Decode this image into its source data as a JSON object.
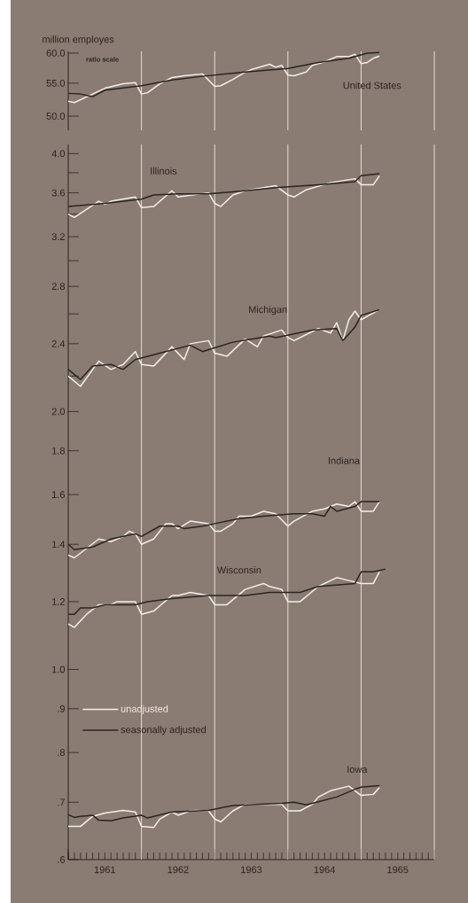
{
  "chart_data": [
    {
      "type": "line",
      "ylabel": "million employes",
      "log": true,
      "tick_labels": "y",
      "annotations": [
        "ratio scale",
        "United States"
      ],
      "xlim": [
        "1961-01",
        "1966-01"
      ],
      "ylim": [
        48,
        60.3
      ],
      "yticks": [
        {
          "value": 50,
          "label": "50.0"
        },
        {
          "value": 55,
          "label": "55.0"
        },
        {
          "value": 60,
          "label": "60.0"
        }
      ],
      "ref_lines": [
        {
          "axis": "x",
          "value": "1962-01",
          "color": "#efe9e0"
        },
        {
          "axis": "x",
          "value": "1963-01",
          "color": "#efe9e0"
        },
        {
          "axis": "x",
          "value": "1964-01",
          "color": "#efe9e0"
        },
        {
          "axis": "x",
          "value": "1965-01",
          "color": "#efe9e0"
        }
      ],
      "series": [
        {
          "color": "#f3eee6",
          "x": [
            "1961-01",
            "1961-02",
            "1961-05",
            "1961-07",
            "1961-10",
            "1961-12",
            "1962-01",
            "1962-02",
            "1962-04",
            "1962-06",
            "1962-08",
            "1962-11",
            "1963-01",
            "1963-02",
            "1963-04",
            "1963-06",
            "1963-07",
            "1963-10",
            "1963-11",
            "1963-12",
            "1964-01",
            "1964-02",
            "1964-04",
            "1964-05",
            "1964-07",
            "1964-09",
            "1964-11",
            "1964-12",
            "1965-01",
            "1965-02",
            "1965-03",
            "1965-04"
          ],
          "values": [
            52.2,
            52.0,
            53.3,
            54.2,
            54.9,
            55.1,
            53.3,
            53.5,
            54.9,
            55.9,
            56.2,
            56.5,
            54.5,
            54.6,
            55.6,
            56.8,
            57.2,
            58.1,
            57.6,
            57.9,
            56.3,
            56.2,
            56.8,
            57.9,
            58.5,
            59.4,
            59.4,
            59.8,
            58.2,
            58.4,
            59.1,
            59.5
          ]
        },
        {
          "color": "#2a2522",
          "x": [
            "1961-01",
            "1961-03",
            "1961-05",
            "1961-07",
            "1962-01",
            "1962-06",
            "1962-11",
            "1963-06",
            "1964-01",
            "1964-06",
            "1964-11",
            "1965-02",
            "1965-04"
          ],
          "values": [
            53.4,
            53.3,
            52.9,
            53.9,
            54.6,
            55.5,
            56.1,
            56.8,
            57.4,
            58.4,
            59.1,
            60.0,
            60.1
          ]
        }
      ]
    },
    {
      "type": "line",
      "log": true,
      "legend": "bottom left",
      "annotations": [
        "Illinois",
        "Michigan",
        "Indiana",
        "Wisconsin",
        "Iowa"
      ],
      "xlim": [
        "1961-01",
        "1966-01"
      ],
      "ylim": [
        0.6,
        4.1
      ],
      "xticks": [
        {
          "value": "1961-01",
          "label": null
        },
        {
          "value": "1962-01",
          "label": null
        },
        {
          "value": "1963-01",
          "label": null
        },
        {
          "value": "1964-01",
          "label": null
        },
        {
          "value": "1965-01",
          "label": null
        },
        {
          "value": "1966-01",
          "label": null
        },
        {
          "value": "1961-07",
          "label": "1961"
        },
        {
          "value": "1962-07",
          "label": "1962"
        },
        {
          "value": "1963-07",
          "label": "1963"
        },
        {
          "value": "1964-07",
          "label": "1964"
        },
        {
          "value": "1965-07",
          "label": "1965"
        }
      ],
      "yticks": [
        {
          "value": 4.0,
          "label": "4.0"
        },
        {
          "value": 3.8,
          "label": null
        },
        {
          "value": 3.6,
          "label": "3.6"
        },
        {
          "value": 3.4,
          "label": null
        },
        {
          "value": 3.2,
          "label": "3.2"
        },
        {
          "value": 3.0,
          "label": null
        },
        {
          "value": 2.8,
          "label": "2.8"
        },
        {
          "value": 2.6,
          "label": null
        },
        {
          "value": 2.4,
          "label": "2.4"
        },
        {
          "value": 2.2,
          "label": null
        },
        {
          "value": 2.0,
          "label": "2.0"
        },
        {
          "value": 1.8,
          "label": "1.8"
        },
        {
          "value": 1.6,
          "label": "1.6"
        },
        {
          "value": 1.4,
          "label": "1.4"
        },
        {
          "value": 1.2,
          "label": "1.2"
        },
        {
          "value": 1.0,
          "label": "1.0"
        },
        {
          "value": 0.9,
          "label": ".9"
        },
        {
          "value": 0.8,
          "label": ".8"
        },
        {
          "value": 0.7,
          "label": ".7"
        },
        {
          "value": 0.6,
          "label": ".6"
        }
      ],
      "ref_lines": [
        {
          "axis": "x",
          "value": "1962-01",
          "color": "#efe9e0"
        },
        {
          "axis": "x",
          "value": "1963-01",
          "color": "#efe9e0"
        },
        {
          "axis": "x",
          "value": "1964-01",
          "color": "#efe9e0"
        },
        {
          "axis": "x",
          "value": "1965-01",
          "color": "#efe9e0"
        }
      ],
      "series": [
        {
          "name": "unadjusted",
          "color": "#f3eee6",
          "x": [
            "1961-01",
            "1961-02",
            "1961-06",
            "1961-07",
            "1961-08",
            "1961-12",
            "1962-01",
            "1962-03",
            "1962-06",
            "1962-07",
            "1962-12",
            "1963-01",
            "1963-02",
            "1963-04",
            "1963-06",
            "1963-11",
            "1964-01",
            "1964-02",
            "1964-04",
            "1964-08",
            "1964-12",
            "1965-01",
            "1965-03",
            "1965-04"
          ],
          "values": [
            3.4,
            3.37,
            3.52,
            3.49,
            3.52,
            3.56,
            3.46,
            3.47,
            3.62,
            3.56,
            3.6,
            3.5,
            3.47,
            3.58,
            3.62,
            3.67,
            3.58,
            3.56,
            3.63,
            3.7,
            3.74,
            3.68,
            3.68,
            3.77
          ]
        },
        {
          "name": "seasonally adjusted",
          "color": "#2a2522",
          "x": [
            "1961-01",
            "1961-07",
            "1962-01",
            "1962-03",
            "1962-07",
            "1962-12",
            "1963-06",
            "1963-11",
            "1964-06",
            "1964-12",
            "1965-01",
            "1965-04"
          ],
          "values": [
            3.47,
            3.5,
            3.54,
            3.58,
            3.59,
            3.59,
            3.62,
            3.65,
            3.68,
            3.71,
            3.77,
            3.79
          ]
        },
        {
          "color": "#f3eee6",
          "x": [
            "1961-01",
            "1961-03",
            "1961-06",
            "1961-08",
            "1961-10",
            "1961-12",
            "1962-01",
            "1962-03",
            "1962-06",
            "1962-08",
            "1962-09",
            "1962-12",
            "1963-01",
            "1963-03",
            "1963-06",
            "1963-08",
            "1963-09",
            "1963-12",
            "1964-01",
            "1964-02",
            "1964-06",
            "1964-08",
            "1964-09",
            "1964-10",
            "1964-11",
            "1964-12",
            "1965-01",
            "1965-04"
          ],
          "values": [
            2.2,
            2.14,
            2.29,
            2.24,
            2.27,
            2.35,
            2.27,
            2.26,
            2.38,
            2.3,
            2.4,
            2.42,
            2.34,
            2.32,
            2.43,
            2.38,
            2.45,
            2.49,
            2.44,
            2.42,
            2.5,
            2.47,
            2.54,
            2.42,
            2.56,
            2.62,
            2.56,
            2.63
          ]
        },
        {
          "color": "#2a2522",
          "x": [
            "1961-01",
            "1961-03",
            "1961-05",
            "1961-08",
            "1961-10",
            "1961-12",
            "1962-04",
            "1962-09",
            "1962-11",
            "1963-04",
            "1963-07",
            "1963-10",
            "1963-11",
            "1964-05",
            "1964-09",
            "1964-10",
            "1964-12",
            "1965-01",
            "1965-04"
          ],
          "values": [
            2.24,
            2.18,
            2.26,
            2.27,
            2.24,
            2.3,
            2.34,
            2.39,
            2.35,
            2.41,
            2.43,
            2.45,
            2.44,
            2.49,
            2.5,
            2.42,
            2.51,
            2.59,
            2.63
          ]
        },
        {
          "color": "#f3eee6",
          "x": [
            "1961-01",
            "1961-02",
            "1961-06",
            "1961-08",
            "1961-10",
            "1961-11",
            "1961-12",
            "1962-01",
            "1962-03",
            "1962-05",
            "1962-06",
            "1962-07",
            "1962-09",
            "1962-12",
            "1963-01",
            "1963-02",
            "1963-04",
            "1963-05",
            "1963-07",
            "1963-09",
            "1963-11",
            "1964-01",
            "1964-02",
            "1964-05",
            "1964-07",
            "1964-09",
            "1964-11",
            "1964-12",
            "1965-01",
            "1965-03",
            "1965-04"
          ],
          "values": [
            1.36,
            1.35,
            1.42,
            1.41,
            1.43,
            1.45,
            1.44,
            1.4,
            1.42,
            1.48,
            1.48,
            1.46,
            1.49,
            1.48,
            1.45,
            1.45,
            1.48,
            1.51,
            1.51,
            1.53,
            1.52,
            1.47,
            1.49,
            1.53,
            1.54,
            1.56,
            1.55,
            1.57,
            1.53,
            1.53,
            1.57
          ]
        },
        {
          "color": "#2a2522",
          "x": [
            "1961-01",
            "1961-02",
            "1961-05",
            "1961-08",
            "1961-10",
            "1961-12",
            "1962-01",
            "1962-04",
            "1962-07",
            "1962-08",
            "1962-11",
            "1963-01",
            "1963-05",
            "1963-09",
            "1964-02",
            "1964-05",
            "1964-07",
            "1964-08",
            "1964-09",
            "1964-12",
            "1965-01",
            "1965-04"
          ],
          "values": [
            1.4,
            1.38,
            1.39,
            1.42,
            1.43,
            1.44,
            1.43,
            1.47,
            1.47,
            1.46,
            1.47,
            1.48,
            1.5,
            1.51,
            1.52,
            1.52,
            1.51,
            1.55,
            1.53,
            1.55,
            1.57,
            1.57
          ]
        },
        {
          "color": "#f3eee6",
          "x": [
            "1961-01",
            "1961-02",
            "1961-04",
            "1961-06",
            "1961-08",
            "1961-09",
            "1961-11",
            "1961-12",
            "1962-01",
            "1962-03",
            "1962-06",
            "1962-07",
            "1962-09",
            "1962-12",
            "1963-01",
            "1963-03",
            "1963-06",
            "1963-09",
            "1963-10",
            "1963-12",
            "1964-01",
            "1964-03",
            "1964-06",
            "1964-09",
            "1964-11",
            "1965-01",
            "1965-03",
            "1965-04"
          ],
          "values": [
            1.13,
            1.12,
            1.16,
            1.19,
            1.19,
            1.2,
            1.2,
            1.2,
            1.16,
            1.17,
            1.22,
            1.22,
            1.23,
            1.22,
            1.19,
            1.19,
            1.24,
            1.26,
            1.25,
            1.24,
            1.2,
            1.2,
            1.25,
            1.28,
            1.27,
            1.26,
            1.26,
            1.3
          ]
        },
        {
          "color": "#2a2522",
          "x": [
            "1961-01",
            "1961-02",
            "1961-03",
            "1961-05",
            "1961-07",
            "1961-12",
            "1962-02",
            "1962-06",
            "1962-12",
            "1963-06",
            "1963-10",
            "1964-03",
            "1964-06",
            "1964-12",
            "1965-01",
            "1965-03",
            "1965-05"
          ],
          "values": [
            1.16,
            1.16,
            1.18,
            1.18,
            1.19,
            1.19,
            1.2,
            1.21,
            1.22,
            1.22,
            1.23,
            1.23,
            1.25,
            1.26,
            1.3,
            1.3,
            1.31
          ]
        },
        {
          "color": "#f3eee6",
          "x": [
            "1961-01",
            "1961-03",
            "1961-05",
            "1961-07",
            "1961-10",
            "1961-12",
            "1962-01",
            "1962-03",
            "1962-04",
            "1962-06",
            "1962-07",
            "1962-09",
            "1962-10",
            "1962-12",
            "1963-01",
            "1963-02",
            "1963-04",
            "1963-06",
            "1963-12",
            "1964-01",
            "1964-03",
            "1964-05",
            "1964-06",
            "1964-08",
            "1964-11",
            "1965-01",
            "1965-03",
            "1965-04"
          ],
          "values": [
            0.656,
            0.656,
            0.674,
            0.68,
            0.685,
            0.682,
            0.656,
            0.654,
            0.669,
            0.682,
            0.676,
            0.684,
            0.685,
            0.684,
            0.669,
            0.664,
            0.684,
            0.696,
            0.696,
            0.684,
            0.684,
            0.696,
            0.71,
            0.722,
            0.731,
            0.713,
            0.715,
            0.728
          ]
        },
        {
          "color": "#2a2522",
          "x": [
            "1961-01",
            "1961-02",
            "1961-03",
            "1961-05",
            "1961-06",
            "1961-08",
            "1961-10",
            "1962-01",
            "1962-02",
            "1962-06",
            "1962-12",
            "1963-04",
            "1963-08",
            "1963-12",
            "1964-02",
            "1964-04",
            "1964-06",
            "1964-09",
            "1964-12",
            "1965-01",
            "1965-04"
          ],
          "values": [
            0.677,
            0.672,
            0.674,
            0.676,
            0.667,
            0.666,
            0.671,
            0.676,
            0.671,
            0.682,
            0.685,
            0.694,
            0.696,
            0.698,
            0.7,
            0.695,
            0.701,
            0.71,
            0.725,
            0.729,
            0.732
          ]
        }
      ]
    }
  ]
}
